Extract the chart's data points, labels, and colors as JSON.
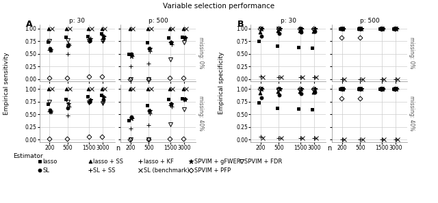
{
  "title": "Variable selection performance",
  "n_values": [
    200,
    500,
    1500,
    3000
  ],
  "sensitivity": {
    "p30_missing0": {
      "lasso": [
        0.74,
        0.83,
        0.85,
        0.9
      ],
      "lasso_ss": [
        1.0,
        1.0,
        1.0,
        1.0
      ],
      "lasso_kf": [
        0.58,
        0.5,
        0.75,
        0.75
      ],
      "SL": [
        0.6,
        0.65,
        0.75,
        0.8
      ],
      "SL_ss": [
        0.56,
        0.67,
        0.8,
        0.85
      ],
      "SL_bench": [
        1.0,
        1.0,
        1.0,
        1.0
      ],
      "SPVIM_gFWER": [
        0.57,
        0.68,
        0.79,
        0.84
      ],
      "SPVIM_FDR": [
        0.75,
        0.76,
        0.75,
        0.75
      ],
      "SPVIM_PFP": [
        0.02,
        0.02,
        0.05,
        0.05
      ]
    },
    "p500_missing0": {
      "lasso": [
        0.5,
        0.72,
        0.82,
        0.83
      ],
      "lasso_ss": [
        1.0,
        1.0,
        1.0,
        1.0
      ],
      "lasso_kf": [
        0.25,
        0.3,
        0.72,
        0.8
      ],
      "SL": [
        0.5,
        0.6,
        0.73,
        0.82
      ],
      "SL_ss": [
        0.45,
        0.55,
        0.68,
        0.82
      ],
      "SL_bench": [
        1.0,
        1.0,
        1.0,
        1.0
      ],
      "SPVIM_gFWER": [
        0.45,
        0.6,
        0.72,
        0.82
      ],
      "SPVIM_FDR": [
        0.0,
        0.0,
        0.38,
        0.72
      ],
      "SPVIM_PFP": [
        0.0,
        0.0,
        0.02,
        0.02
      ]
    },
    "p30_missing40": {
      "lasso": [
        0.7,
        0.8,
        0.85,
        0.88
      ],
      "lasso_ss": [
        1.0,
        1.0,
        1.0,
        1.0
      ],
      "lasso_kf": [
        0.55,
        0.48,
        0.73,
        0.73
      ],
      "SL": [
        0.58,
        0.63,
        0.74,
        0.78
      ],
      "SL_ss": [
        0.54,
        0.65,
        0.79,
        0.84
      ],
      "SL_bench": [
        1.0,
        1.0,
        1.0,
        1.0
      ],
      "SPVIM_gFWER": [
        0.55,
        0.7,
        0.78,
        0.84
      ],
      "SPVIM_FDR": [
        0.75,
        0.75,
        0.73,
        0.72
      ],
      "SPVIM_PFP": [
        0.02,
        0.02,
        0.05,
        0.05
      ]
    },
    "p500_missing40": {
      "lasso": [
        0.38,
        0.68,
        0.8,
        0.82
      ],
      "lasso_ss": [
        1.0,
        1.0,
        1.0,
        1.0
      ],
      "lasso_kf": [
        0.22,
        0.28,
        0.68,
        0.78
      ],
      "SL": [
        0.45,
        0.57,
        0.7,
        0.8
      ],
      "SL_ss": [
        0.42,
        0.52,
        0.65,
        0.8
      ],
      "SL_bench": [
        1.0,
        1.0,
        1.0,
        1.0
      ],
      "SPVIM_gFWER": [
        0.42,
        0.57,
        0.7,
        0.8
      ],
      "SPVIM_FDR": [
        0.0,
        0.0,
        0.3,
        0.6
      ],
      "SPVIM_PFP": [
        0.0,
        0.0,
        0.02,
        0.02
      ]
    }
  },
  "specificity": {
    "p30_missing0": {
      "lasso": [
        0.75,
        0.65,
        0.63,
        0.62
      ],
      "lasso_ss": [
        0.93,
        0.96,
        0.96,
        0.94
      ],
      "lasso_kf": [
        0.05,
        0.03,
        0.03,
        0.03
      ],
      "SL": [
        0.85,
        0.9,
        0.93,
        0.94
      ],
      "SL_ss": [
        1.0,
        1.0,
        1.0,
        1.0
      ],
      "SL_bench": [
        0.03,
        0.03,
        0.03,
        0.03
      ],
      "SPVIM_gFWER": [
        1.0,
        1.0,
        1.0,
        1.0
      ],
      "SPVIM_FDR": [
        1.0,
        0.99,
        0.98,
        0.97
      ],
      "SPVIM_PFP": [
        1.0,
        1.0,
        1.0,
        1.0
      ]
    },
    "p500_missing0": {
      "lasso": [
        1.0,
        1.0,
        1.0,
        1.0
      ],
      "lasso_ss": [
        1.0,
        1.0,
        1.0,
        1.0
      ],
      "lasso_kf": [
        0.0,
        0.0,
        0.0,
        0.0
      ],
      "SL": [
        1.0,
        1.0,
        1.0,
        1.0
      ],
      "SL_ss": [
        1.0,
        1.0,
        1.0,
        1.0
      ],
      "SL_bench": [
        0.0,
        0.0,
        0.0,
        0.0
      ],
      "SPVIM_gFWER": [
        1.0,
        1.0,
        1.0,
        1.0
      ],
      "SPVIM_FDR": [
        1.0,
        1.0,
        1.0,
        1.0
      ],
      "SPVIM_PFP": [
        0.82,
        0.82,
        1.0,
        1.0
      ]
    },
    "p30_missing40": {
      "lasso": [
        0.73,
        0.63,
        0.61,
        0.6
      ],
      "lasso_ss": [
        0.92,
        0.95,
        0.95,
        0.93
      ],
      "lasso_kf": [
        0.05,
        0.03,
        0.03,
        0.03
      ],
      "SL": [
        0.83,
        0.88,
        0.91,
        0.93
      ],
      "SL_ss": [
        1.0,
        1.0,
        1.0,
        1.0
      ],
      "SL_bench": [
        0.03,
        0.03,
        0.03,
        0.03
      ],
      "SPVIM_gFWER": [
        1.0,
        1.0,
        1.0,
        1.0
      ],
      "SPVIM_FDR": [
        1.0,
        0.99,
        0.98,
        0.97
      ],
      "SPVIM_PFP": [
        1.0,
        1.0,
        1.0,
        1.0
      ]
    },
    "p500_missing40": {
      "lasso": [
        1.0,
        1.0,
        1.0,
        1.0
      ],
      "lasso_ss": [
        1.0,
        1.0,
        1.0,
        1.0
      ],
      "lasso_kf": [
        0.0,
        0.0,
        0.0,
        0.0
      ],
      "SL": [
        1.0,
        1.0,
        1.0,
        1.0
      ],
      "SL_ss": [
        1.0,
        1.0,
        1.0,
        1.0
      ],
      "SL_bench": [
        0.0,
        0.0,
        0.0,
        0.0
      ],
      "SPVIM_gFWER": [
        1.0,
        1.0,
        1.0,
        1.0
      ],
      "SPVIM_FDR": [
        1.0,
        1.0,
        1.0,
        1.0
      ],
      "SPVIM_PFP": [
        0.82,
        0.82,
        1.0,
        1.0
      ]
    }
  }
}
